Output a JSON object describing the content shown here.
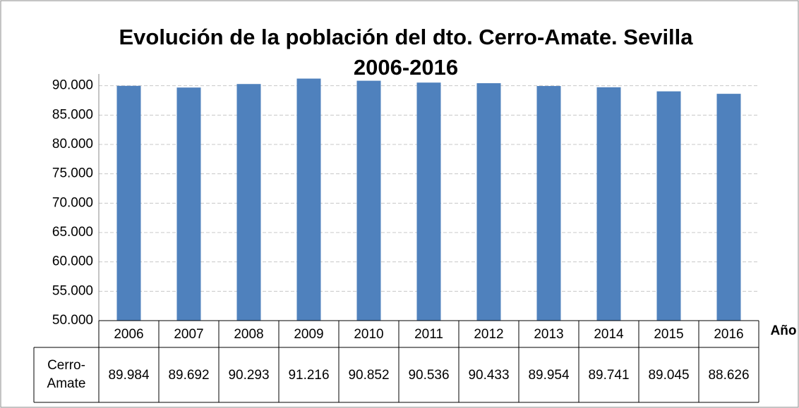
{
  "chart_data": {
    "type": "bar",
    "title": [
      "Evolución de la población del dto. Cerro-Amate. Sevilla",
      "2006-2016"
    ],
    "x_label": "Año",
    "categories": [
      "2006",
      "2007",
      "2008",
      "2009",
      "2010",
      "2011",
      "2012",
      "2013",
      "2014",
      "2015",
      "2016"
    ],
    "series": [
      {
        "name": "Cerro-Amate",
        "color": "#4f81bd",
        "values": [
          89984,
          89692,
          90293,
          91216,
          90852,
          90536,
          90433,
          89954,
          89741,
          89045,
          88626
        ],
        "value_labels": [
          "89.984",
          "89.692",
          "90.293",
          "91.216",
          "90.852",
          "90.536",
          "90.433",
          "89.954",
          "89.741",
          "89.045",
          "88.626"
        ]
      }
    ],
    "ylim": [
      50000,
      92000
    ],
    "yticks": [
      {
        "value": 50000,
        "label": "50.000"
      },
      {
        "value": 55000,
        "label": "55.000"
      },
      {
        "value": 60000,
        "label": "60.000"
      },
      {
        "value": 65000,
        "label": "65.000"
      },
      {
        "value": 70000,
        "label": "70.000"
      },
      {
        "value": 75000,
        "label": "75.000"
      },
      {
        "value": 80000,
        "label": "80.000"
      },
      {
        "value": 85000,
        "label": "85.000"
      },
      {
        "value": 90000,
        "label": "90.000"
      }
    ],
    "grid": true
  }
}
